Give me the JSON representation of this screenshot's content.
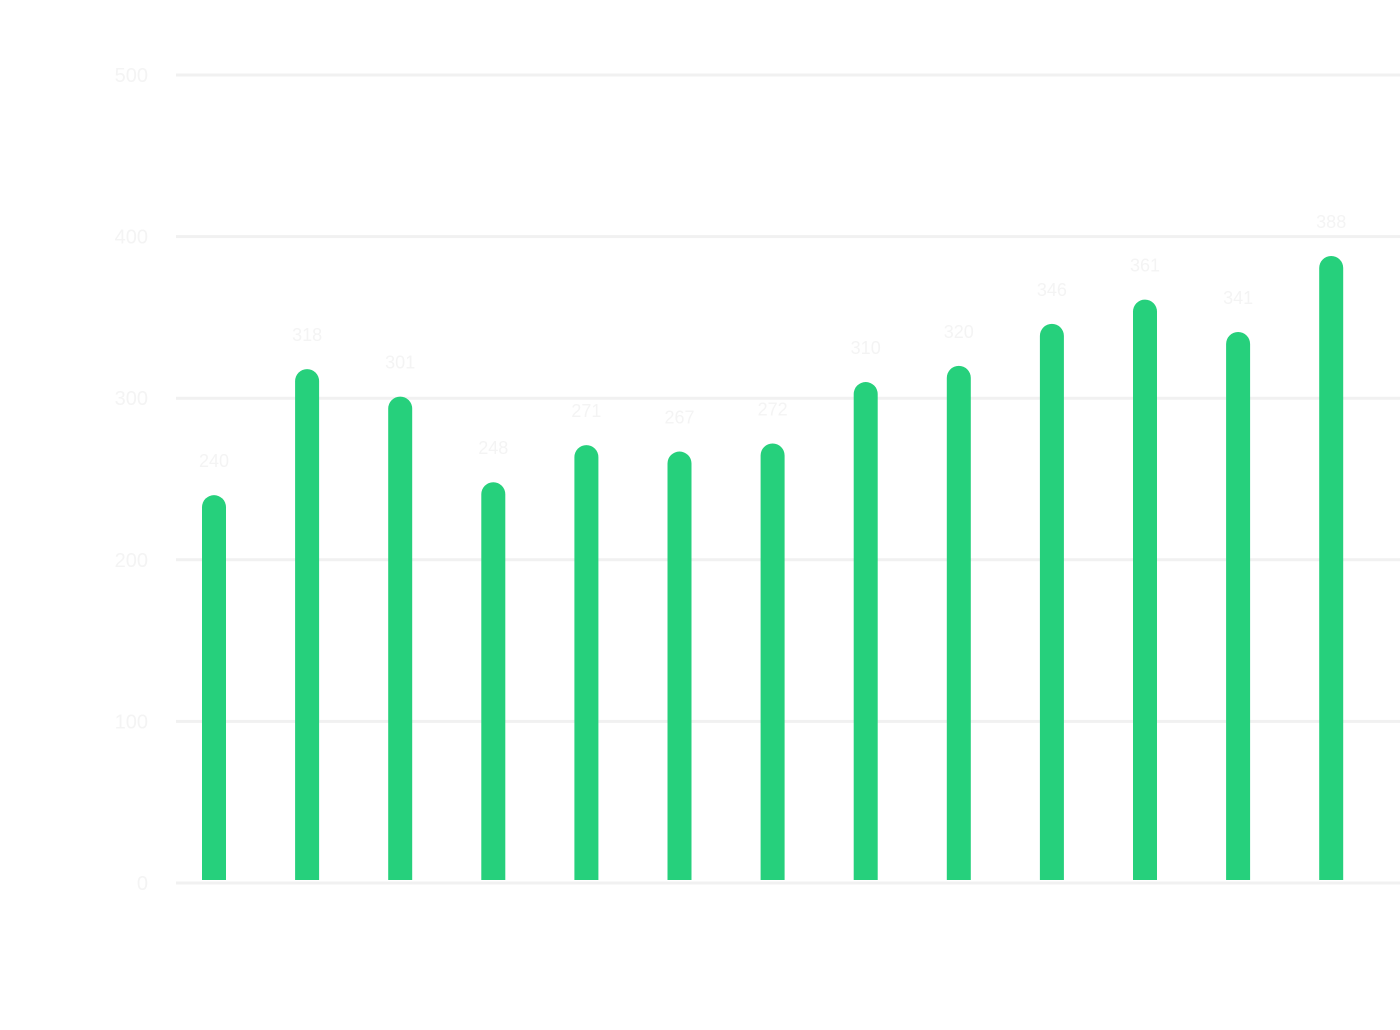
{
  "chart_data": {
    "type": "bar",
    "title": "",
    "xlabel": "",
    "ylabel": "",
    "categories": [
      "",
      "",
      "",
      "",
      "",
      "",
      "",
      "",
      "",
      "",
      "",
      "",
      ""
    ],
    "series": [
      {
        "values": [
          240,
          318,
          301,
          248,
          271,
          267,
          272,
          310,
          320,
          346,
          361,
          341,
          388
        ]
      }
    ],
    "ylim": [
      0,
      500
    ],
    "yticks": [
      0,
      100,
      200,
      300,
      400,
      500
    ],
    "grid": true,
    "bar_color": "#26d07c"
  }
}
